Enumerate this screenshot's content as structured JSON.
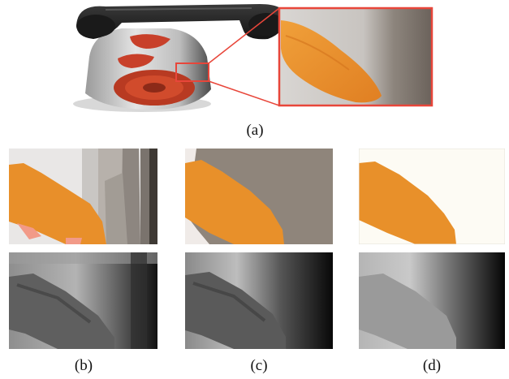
{
  "captions": {
    "a": "(a)",
    "b": "(b)",
    "c": "(c)",
    "d": "(d)"
  },
  "colors": {
    "zoom_box": "#e8463a",
    "orange_region": "#e8902a",
    "phone_body_dark": "#222222",
    "phone_accent_red": "#c8402a"
  },
  "icons": {
    "telephone": "rotary-telephone-render"
  }
}
